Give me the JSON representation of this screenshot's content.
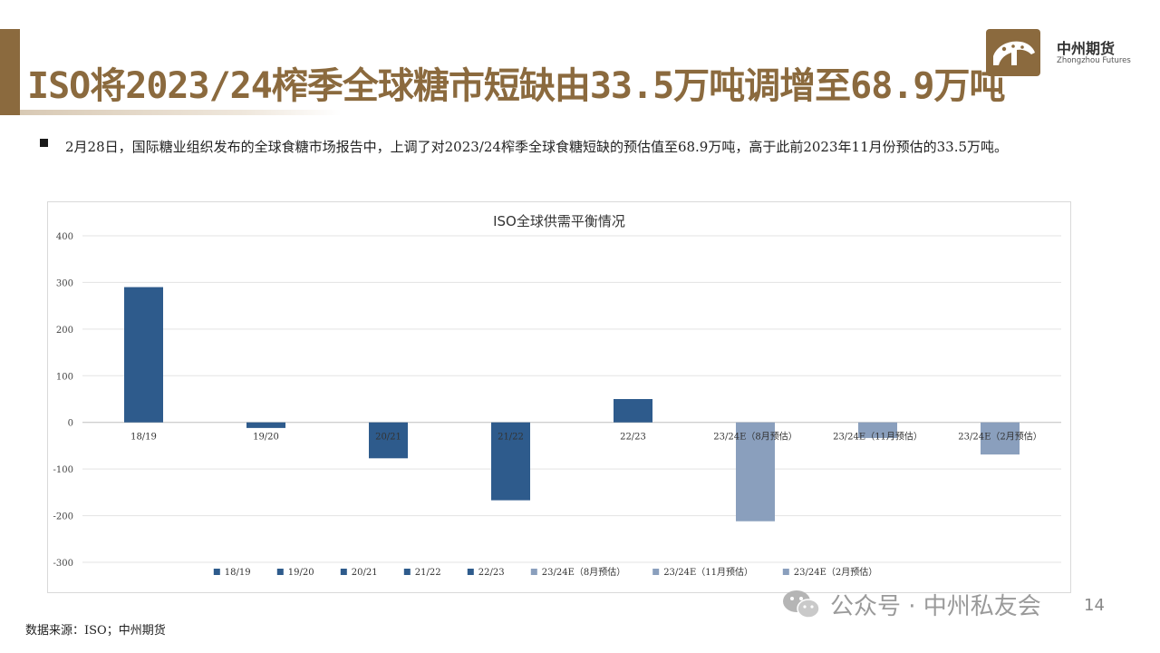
{
  "header": {
    "title": "ISO将2023/24榨季全球糖市短缺由33.5万吨调增至68.9万吨"
  },
  "logo": {
    "name_cn": "中州期货",
    "name_en": "Zhongzhou Futures"
  },
  "bullet": {
    "text": "2月28日，国际糖业组织发布的全球食糖市场报告中，上调了对2023/24榨季全球食糖短缺的预估值至68.9万吨，高于此前2023年11月份预估的33.5万吨。"
  },
  "chart_data": {
    "type": "bar",
    "title": "ISO全球供需平衡情况",
    "xlabel": "",
    "ylabel": "",
    "ylim": [
      -300,
      400
    ],
    "yticks": [
      400,
      300,
      200,
      100,
      0,
      -100,
      -200,
      -300
    ],
    "categories": [
      "18/19",
      "19/20",
      "20/21",
      "21/22",
      "22/23",
      "23/24E（8月预估）",
      "23/24E（11月预估）",
      "23/24E（2月预估）"
    ],
    "values": [
      290,
      -12,
      -77,
      -167,
      50,
      -212,
      -33.5,
      -68.9
    ],
    "colors": [
      "#2e5b8c",
      "#2e5b8c",
      "#2e5b8c",
      "#2e5b8c",
      "#2e5b8c",
      "#8a9fbd",
      "#8a9fbd",
      "#8a9fbd"
    ],
    "legend_position": "bottom",
    "grid": true
  },
  "footer": {
    "source": "数据来源：ISO；中州期货",
    "watermark": "公众号 · 中州私友会",
    "page_number": "14"
  }
}
